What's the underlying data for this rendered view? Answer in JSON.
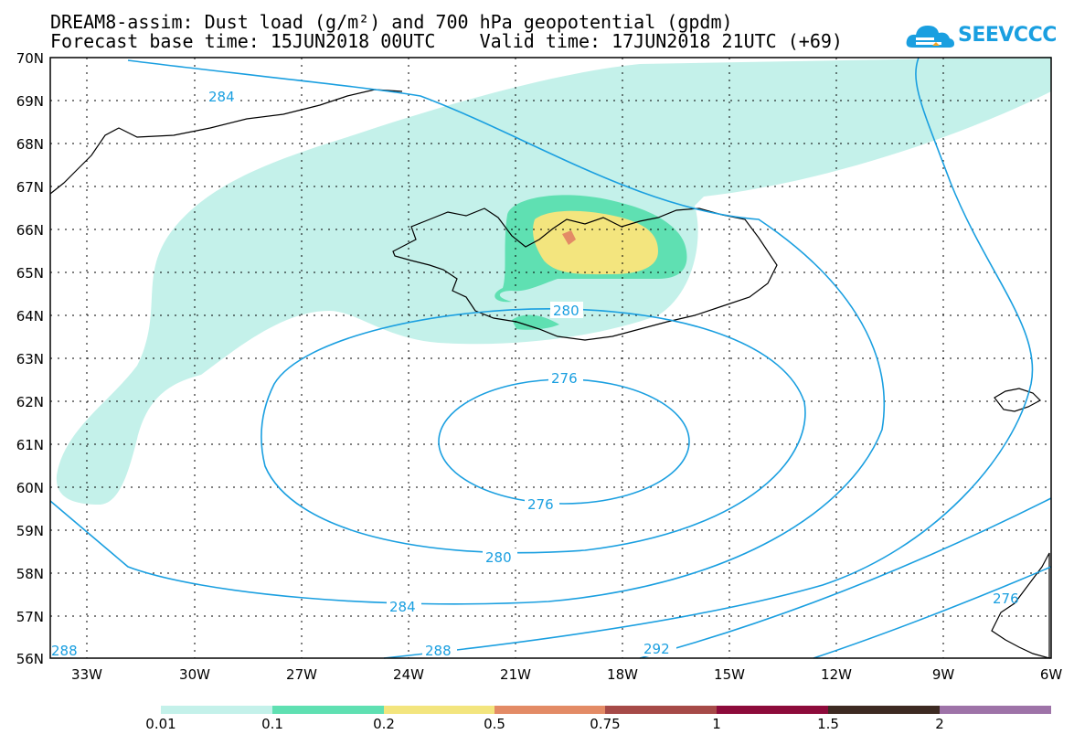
{
  "header": {
    "title_line1": "DREAM8-assim: Dust load (g/m²) and 700 hPa geopotential (gpdm)",
    "title_line2": "Forecast base time: 15JUN2018 00UTC    Valid time: 17JUN2018 21UTC (+69)",
    "logo_text": "SEEVCCC"
  },
  "map": {
    "lat_labels": [
      "70N",
      "69N",
      "68N",
      "67N",
      "66N",
      "65N",
      "64N",
      "63N",
      "62N",
      "61N",
      "60N",
      "59N",
      "58N",
      "57N",
      "56N"
    ],
    "lon_labels": [
      "33W",
      "30W",
      "27W",
      "24W",
      "21W",
      "18W",
      "15W",
      "12W",
      "9W",
      "6W"
    ],
    "contour_labels": [
      "284",
      "280",
      "276",
      "276",
      "280",
      "284",
      "288",
      "288",
      "292",
      "276"
    ],
    "contour_color": "#1a9fe0",
    "dust_colors": {
      "c001": "#c4f1ea",
      "c01": "#5fe0b2",
      "c02": "#f3e57e",
      "c05": "#e38b66",
      "c075": "#a64a48"
    }
  },
  "colorbar": {
    "labels": [
      "0.01",
      "0.1",
      "0.2",
      "0.5",
      "0.75",
      "1",
      "1.5",
      "2"
    ],
    "colors": [
      "#c4f1ea",
      "#5fe0b2",
      "#f3e57e",
      "#e38b66",
      "#a64a48",
      "#8d0b3b",
      "#3d2a22",
      "#9e73a8"
    ]
  }
}
